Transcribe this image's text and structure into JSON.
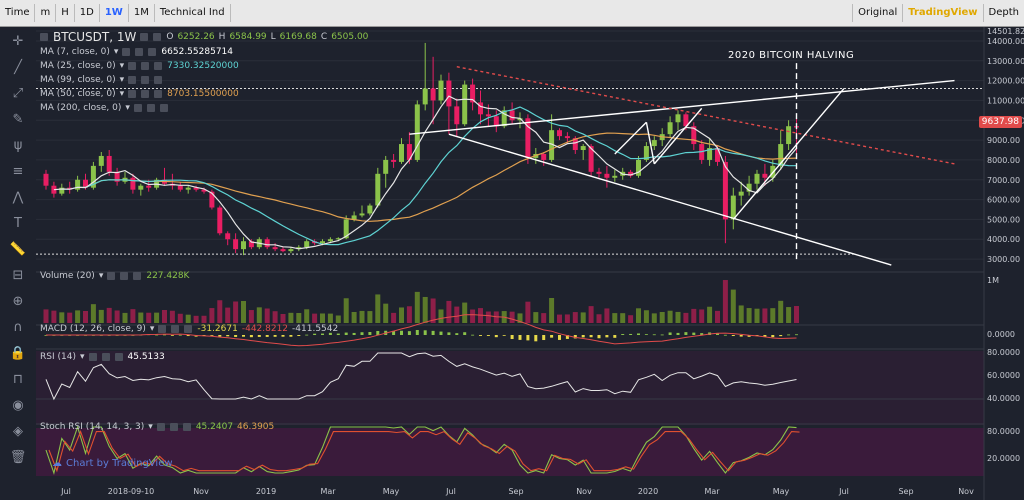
{
  "toolbar": {
    "time_label": "Time",
    "items": [
      "m",
      "H",
      "1D",
      "1W",
      "1M",
      "Technical Ind"
    ],
    "active": "1W",
    "right_items": [
      "Original",
      "TradingView",
      "Depth"
    ],
    "right_active": "TradingView"
  },
  "symbol": "BTCUSDT, 1W",
  "ohlc": {
    "o_label": "O",
    "o": "6252.26",
    "h_label": "H",
    "h": "6584.99",
    "l_label": "L",
    "l": "6169.68",
    "c_label": "C",
    "c": "6505.00"
  },
  "ma_legend": [
    {
      "label": "MA (7, close, 0)",
      "value": "6652.55285714",
      "color": "#ffffff"
    },
    {
      "label": "MA (25, close, 0)",
      "value": "7330.32520000",
      "color": "#5ed3d3"
    },
    {
      "label": "MA (99, close, 0)",
      "value": "",
      "color": "#c78dd6"
    },
    {
      "label": "MA (50, close, 0)",
      "value": "8703.15500000",
      "color": "#e0a050"
    },
    {
      "label": "MA (200, close, 0)",
      "value": "",
      "color": "#c0c0c0"
    }
  ],
  "last_price": "9637.98",
  "annotation": "2020 BITCOIN HALVING",
  "watermark": "Chart by TradingView",
  "indicators": {
    "volume": {
      "label": "Volume (20)",
      "value": "227.428K",
      "axis": "1M"
    },
    "macd": {
      "label": "MACD (12, 26, close, 9)",
      "v1": "-31.2671",
      "v2": "-442.8212",
      "v3": "-411.5542",
      "axis": "0.0000"
    },
    "rsi": {
      "label": "RSI (14)",
      "value": "45.5133",
      "axis": [
        "80.0000",
        "60.0000",
        "40.0000"
      ]
    },
    "stoch": {
      "label": "Stoch RSI (14, 14, 3, 3)",
      "v1": "45.2407",
      "v2": "46.3905",
      "axis": [
        "80.0000",
        "20.0000"
      ]
    }
  },
  "chart_data": {
    "type": "candlestick",
    "price_axis": [
      "14501.82",
      "14000.00",
      "13000.00",
      "12000.00",
      "11000.00",
      "10000.00",
      "9000.00",
      "8000.00",
      "7000.00",
      "6000.00",
      "5000.00",
      "4000.00",
      "3000.00"
    ],
    "ylim": [
      2600,
      14501.82
    ],
    "time_axis": [
      "Jul",
      "2018-09-10",
      "Nov",
      "2019",
      "Mar",
      "May",
      "Jul",
      "Sep",
      "Nov",
      "2020",
      "Mar",
      "May",
      "Jul",
      "Sep",
      "Nov"
    ],
    "candles": [
      [
        7300,
        7500,
        6500,
        6700
      ],
      [
        6700,
        6900,
        6100,
        6300
      ],
      [
        6300,
        6800,
        6200,
        6600
      ],
      [
        6600,
        6900,
        6300,
        6500
      ],
      [
        6500,
        7200,
        6400,
        7000
      ],
      [
        7000,
        7300,
        6500,
        6600
      ],
      [
        6600,
        7900,
        6500,
        7700
      ],
      [
        7700,
        8400,
        7400,
        8200
      ],
      [
        8200,
        8500,
        7200,
        7400
      ],
      [
        7400,
        7600,
        6700,
        6900
      ],
      [
        6900,
        7400,
        6800,
        7100
      ],
      [
        7100,
        7300,
        6300,
        6500
      ],
      [
        6500,
        6800,
        6200,
        6700
      ],
      [
        6700,
        7000,
        6400,
        6600
      ],
      [
        6600,
        7100,
        6500,
        7000
      ],
      [
        7000,
        7600,
        6700,
        6800
      ],
      [
        6800,
        7300,
        6500,
        6700
      ],
      [
        6700,
        6900,
        6400,
        6500
      ],
      [
        6500,
        6700,
        6300,
        6600
      ],
      [
        6600,
        6700,
        6400,
        6500
      ],
      [
        6500,
        6600,
        6300,
        6400
      ],
      [
        6400,
        6500,
        5500,
        5600
      ],
      [
        5600,
        5700,
        4200,
        4300
      ],
      [
        4300,
        4400,
        3700,
        4000
      ],
      [
        4000,
        4300,
        3300,
        3500
      ],
      [
        3500,
        4100,
        3200,
        3900
      ],
      [
        3900,
        4000,
        3500,
        3600
      ],
      [
        3600,
        4100,
        3500,
        4000
      ],
      [
        4000,
        4100,
        3500,
        3600
      ],
      [
        3600,
        3800,
        3400,
        3500
      ],
      [
        3500,
        3600,
        3350,
        3400
      ],
      [
        3400,
        3600,
        3300,
        3500
      ],
      [
        3500,
        3700,
        3400,
        3600
      ],
      [
        3600,
        4000,
        3500,
        3900
      ],
      [
        3900,
        4000,
        3700,
        3800
      ],
      [
        3800,
        4000,
        3700,
        3900
      ],
      [
        3900,
        4100,
        3800,
        4000
      ],
      [
        4000,
        4100,
        3900,
        4050
      ],
      [
        4050,
        5200,
        4000,
        5000
      ],
      [
        5000,
        5400,
        4900,
        5200
      ],
      [
        5200,
        5700,
        5100,
        5300
      ],
      [
        5300,
        5800,
        5200,
        5700
      ],
      [
        5700,
        7600,
        5600,
        7300
      ],
      [
        7300,
        8200,
        6600,
        8000
      ],
      [
        8000,
        8300,
        7600,
        7900
      ],
      [
        7900,
        9100,
        7800,
        8800
      ],
      [
        8800,
        9400,
        7800,
        8000
      ],
      [
        8000,
        11000,
        7900,
        10800
      ],
      [
        10800,
        13900,
        10500,
        11600
      ],
      [
        11600,
        13200,
        9800,
        11000
      ],
      [
        11000,
        12300,
        10800,
        12000
      ],
      [
        12000,
        12400,
        9300,
        10700
      ],
      [
        10700,
        11100,
        9200,
        9800
      ],
      [
        9800,
        12000,
        9700,
        11800
      ],
      [
        11800,
        12100,
        10500,
        10900
      ],
      [
        10900,
        11500,
        9800,
        10300
      ],
      [
        10300,
        10800,
        9700,
        10200
      ],
      [
        10200,
        10500,
        9400,
        9700
      ],
      [
        9700,
        10700,
        9600,
        10500
      ],
      [
        10500,
        10900,
        9800,
        10000
      ],
      [
        10000,
        10400,
        9600,
        10100
      ],
      [
        10100,
        10300,
        7800,
        8100
      ],
      [
        8100,
        8600,
        7800,
        8300
      ],
      [
        8300,
        8400,
        7700,
        8000
      ],
      [
        8000,
        10300,
        7900,
        9500
      ],
      [
        9500,
        9600,
        9000,
        9200
      ],
      [
        9200,
        9400,
        8800,
        9100
      ],
      [
        9100,
        9200,
        8300,
        8500
      ],
      [
        8500,
        8800,
        8000,
        8700
      ],
      [
        8700,
        8800,
        7200,
        7400
      ],
      [
        7400,
        7600,
        7100,
        7300
      ],
      [
        7300,
        7700,
        6600,
        7100
      ],
      [
        7100,
        7500,
        6900,
        7200
      ],
      [
        7200,
        7600,
        7000,
        7400
      ],
      [
        7400,
        7500,
        7100,
        7200
      ],
      [
        7200,
        8200,
        7100,
        8000
      ],
      [
        8000,
        8900,
        7900,
        8700
      ],
      [
        8700,
        9200,
        8500,
        9000
      ],
      [
        9000,
        9600,
        8700,
        9300
      ],
      [
        9300,
        10200,
        9100,
        9900
      ],
      [
        9900,
        10500,
        9500,
        10300
      ],
      [
        10300,
        10400,
        9500,
        9700
      ],
      [
        9700,
        9900,
        8500,
        8800
      ],
      [
        8800,
        9000,
        7800,
        8000
      ],
      [
        8000,
        9100,
        7700,
        8600
      ],
      [
        8600,
        8700,
        7700,
        7900
      ],
      [
        7900,
        8200,
        3800,
        5000
      ],
      [
        5000,
        6600,
        4500,
        6200
      ],
      [
        6200,
        6900,
        5700,
        6400
      ],
      [
        6400,
        7200,
        6200,
        6800
      ],
      [
        6800,
        7500,
        6500,
        7300
      ],
      [
        7300,
        7800,
        6700,
        7100
      ],
      [
        7100,
        8000,
        6900,
        7700
      ],
      [
        7700,
        9500,
        7500,
        8800
      ],
      [
        8800,
        10000,
        8500,
        9700
      ],
      [
        9700,
        10100,
        8300,
        9637.98
      ]
    ]
  }
}
